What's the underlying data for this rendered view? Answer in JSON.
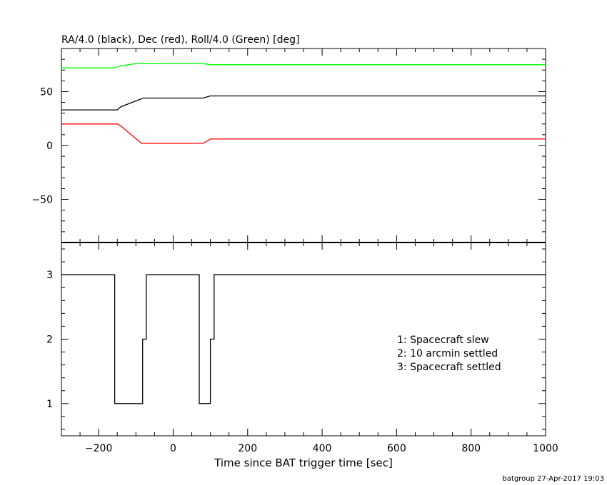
{
  "chart_data": [
    {
      "type": "line",
      "title": "RA/4.0 (black), Dec (red), Roll/4.0 (Green) [deg]",
      "xlim": [
        -300,
        1000
      ],
      "ylim": [
        -90,
        90
      ],
      "yticks": [
        -50,
        0,
        50
      ],
      "ytick_labels": [
        "−50",
        "0",
        "50"
      ],
      "grid": false,
      "series": [
        {
          "color": "#000000",
          "x": [
            -300,
            -150,
            -140,
            -80,
            80,
            100,
            1000
          ],
          "y": [
            33,
            33,
            36,
            44,
            44,
            46,
            46
          ]
        },
        {
          "color": "#ff0000",
          "x": [
            -300,
            -150,
            -140,
            -85,
            80,
            100,
            1000
          ],
          "y": [
            20,
            20,
            18,
            2,
            2,
            6,
            6
          ]
        },
        {
          "color": "#00ff00",
          "x": [
            -300,
            -160,
            -140,
            -100,
            80,
            100,
            1000
          ],
          "y": [
            72,
            72,
            74,
            76,
            76,
            75,
            75
          ]
        }
      ]
    },
    {
      "type": "line",
      "step": true,
      "xlabel": "Time since BAT trigger time [sec]",
      "xlim": [
        -300,
        1000
      ],
      "ylim": [
        0.5,
        3.5
      ],
      "xticks": [
        -200,
        0,
        200,
        400,
        600,
        800,
        1000
      ],
      "xtick_labels": [
        "−200",
        "0",
        "200",
        "400",
        "600",
        "800",
        "1000"
      ],
      "yticks": [
        1,
        2,
        3
      ],
      "ytick_labels": [
        "1",
        "2",
        "3"
      ],
      "legend_position": "lower-right",
      "legend": [
        "1: Spacecraft slew",
        "2: 10 arcmin settled",
        "3: Spacecraft settled"
      ],
      "grid": false,
      "series": [
        {
          "color": "#000000",
          "x": [
            -300,
            -157,
            -157,
            -82,
            -82,
            -72,
            -72,
            70,
            70,
            100,
            100,
            110,
            110,
            1000
          ],
          "y": [
            3,
            3,
            1,
            1,
            2,
            2,
            3,
            3,
            1,
            1,
            2,
            2,
            3,
            3
          ]
        }
      ]
    }
  ],
  "footer": "batgroup 27-Apr-2017 19:03"
}
